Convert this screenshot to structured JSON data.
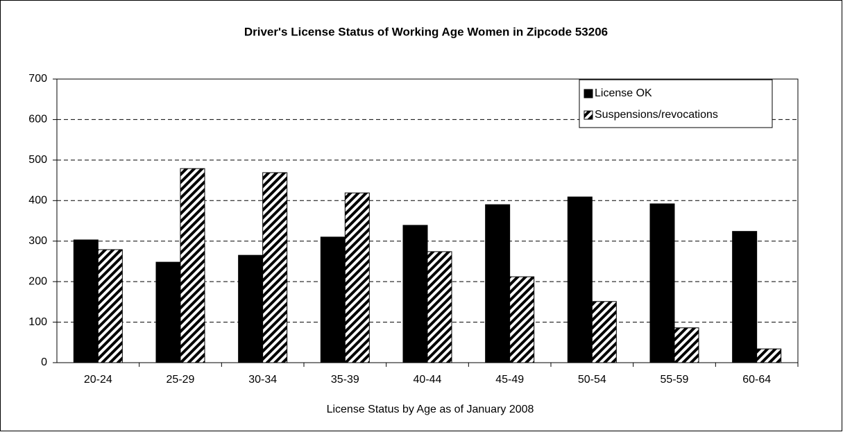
{
  "chart_data": {
    "type": "bar",
    "title": "Driver's License Status of Working Age Women in Zipcode 53206",
    "x_label": "License Status by Age as of January 2008",
    "categories": [
      "20-24",
      "25-29",
      "30-34",
      "35-39",
      "40-44",
      "45-49",
      "50-54",
      "55-59",
      "60-64"
    ],
    "series": [
      {
        "name": "License OK",
        "color": "#000000",
        "hatch": false,
        "values": [
          303,
          248,
          265,
          310,
          339,
          390,
          409,
          392,
          324
        ]
      },
      {
        "name": "Suspensions/revocations",
        "color": "#000000",
        "hatch": true,
        "values": [
          279,
          479,
          469,
          419,
          274,
          212,
          151,
          86,
          34
        ]
      }
    ],
    "ylim": [
      0,
      700
    ],
    "yticks": [
      0,
      100,
      200,
      300,
      400,
      500,
      600,
      700
    ],
    "grid": true,
    "legend": "upper right"
  }
}
